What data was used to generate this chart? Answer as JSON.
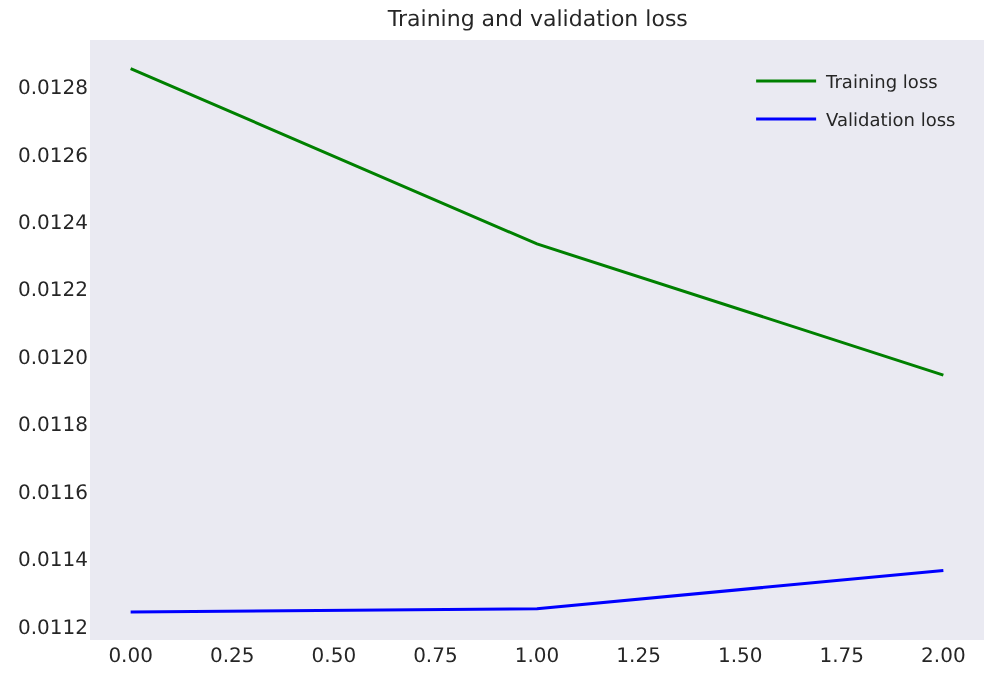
{
  "chart_data": {
    "type": "line",
    "title": "Training and validation loss",
    "x": [
      0,
      1,
      2
    ],
    "series": [
      {
        "name": "Training loss",
        "color": "#008000",
        "values": [
          0.012855,
          0.012335,
          0.011946
        ]
      },
      {
        "name": "Validation loss",
        "color": "#0000ff",
        "values": [
          0.011243,
          0.011253,
          0.011366
        ]
      }
    ],
    "xlim": [
      -0.1,
      2.1
    ],
    "xticks": [
      {
        "value": 0,
        "label": "0.00"
      },
      {
        "value": 0.25,
        "label": "0.25"
      },
      {
        "value": 0.5,
        "label": "0.50"
      },
      {
        "value": 0.75,
        "label": "0.75"
      },
      {
        "value": 1,
        "label": "1.00"
      },
      {
        "value": 1.25,
        "label": "1.25"
      },
      {
        "value": 1.5,
        "label": "1.50"
      },
      {
        "value": 1.75,
        "label": "1.75"
      },
      {
        "value": 2,
        "label": "2.00"
      }
    ],
    "ylim": [
      0.01116,
      0.01294
    ],
    "yticks": [
      0.0112,
      0.0114,
      0.0116,
      0.0118,
      {
        "value": 0.012,
        "label": "0.0120"
      },
      0.0122,
      0.0124,
      0.0126,
      0.0128
    ],
    "legend": "top right",
    "grid": false,
    "marker": "none",
    "line_style": "solid"
  }
}
